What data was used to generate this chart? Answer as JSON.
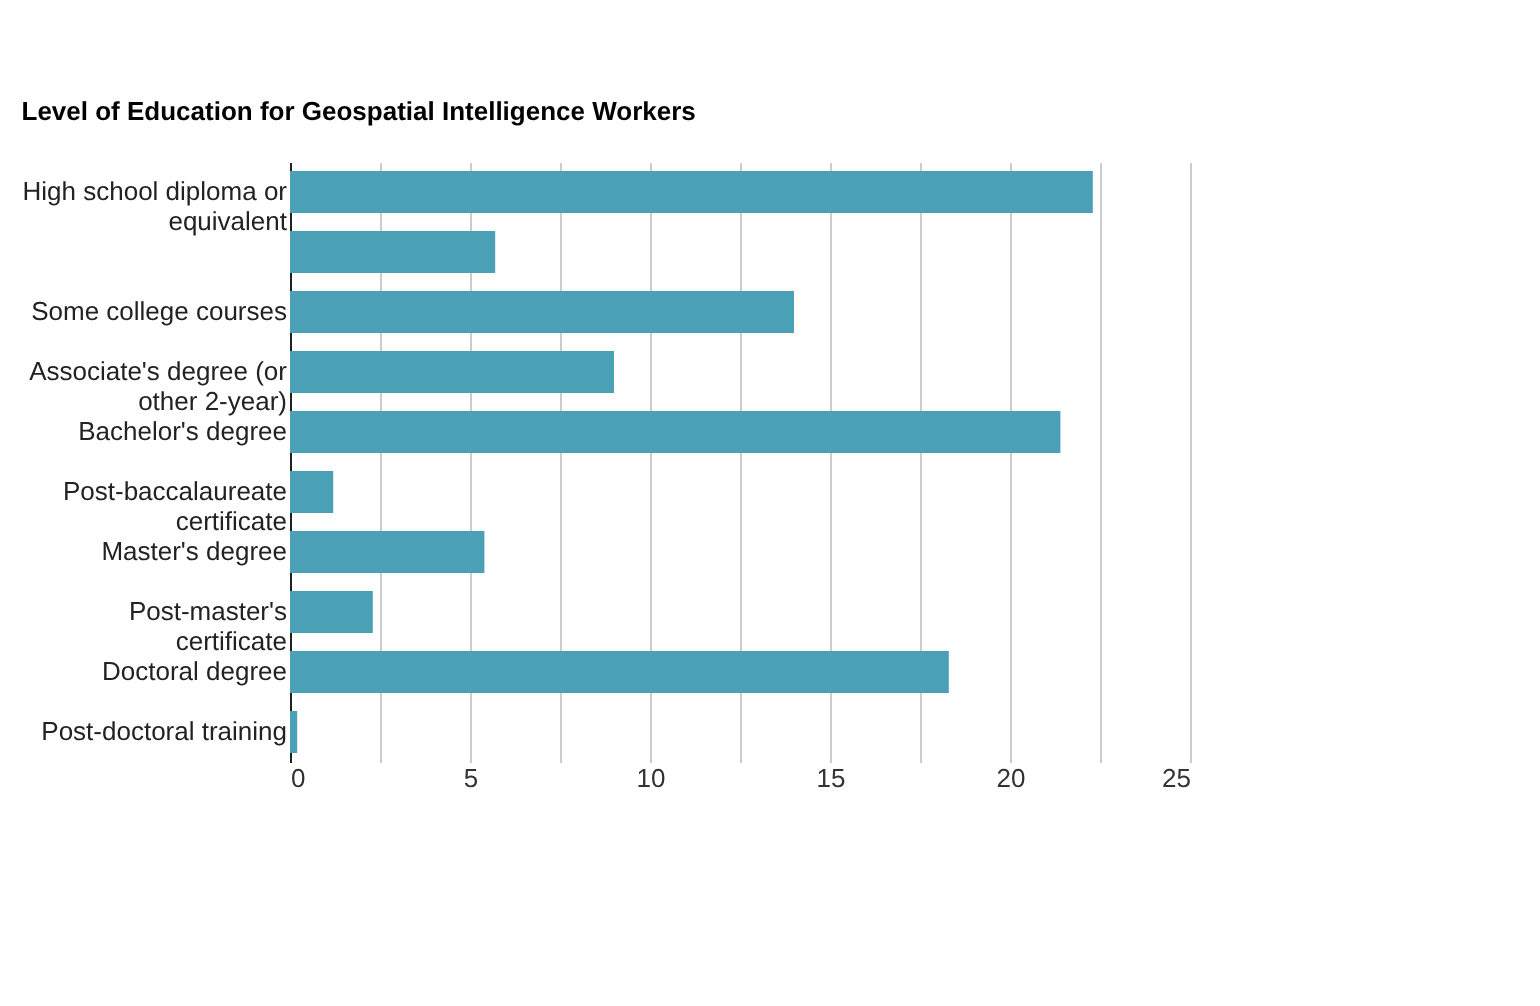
{
  "chart_data": {
    "type": "bar",
    "orientation": "horizontal",
    "title": "Level of Education for Geospatial Intelligence Workers",
    "categories": [
      "High school diploma or equivalent",
      null,
      "Some college courses",
      "Associate's degree (or other 2-year)",
      "Bachelor's degree",
      "Post-baccalaureate certificate",
      "Master's degree",
      "Post-master's certificate",
      "Doctoral degree",
      "Post-doctoral training"
    ],
    "values": [
      22.3,
      5.7,
      14.0,
      9.0,
      21.4,
      1.2,
      5.4,
      2.3,
      18.3,
      0.2
    ],
    "color": "#4aa0b5",
    "xlim": [
      0,
      25
    ],
    "xticks": [
      0,
      {
        "value": 2.5,
        "label": null
      },
      5,
      {
        "value": 7.5,
        "label": null
      },
      10,
      {
        "value": 12.5,
        "label": null
      },
      15,
      {
        "value": 17.5,
        "label": null
      },
      20,
      {
        "value": 22.5,
        "label": null
      },
      25
    ],
    "grid": "x"
  }
}
